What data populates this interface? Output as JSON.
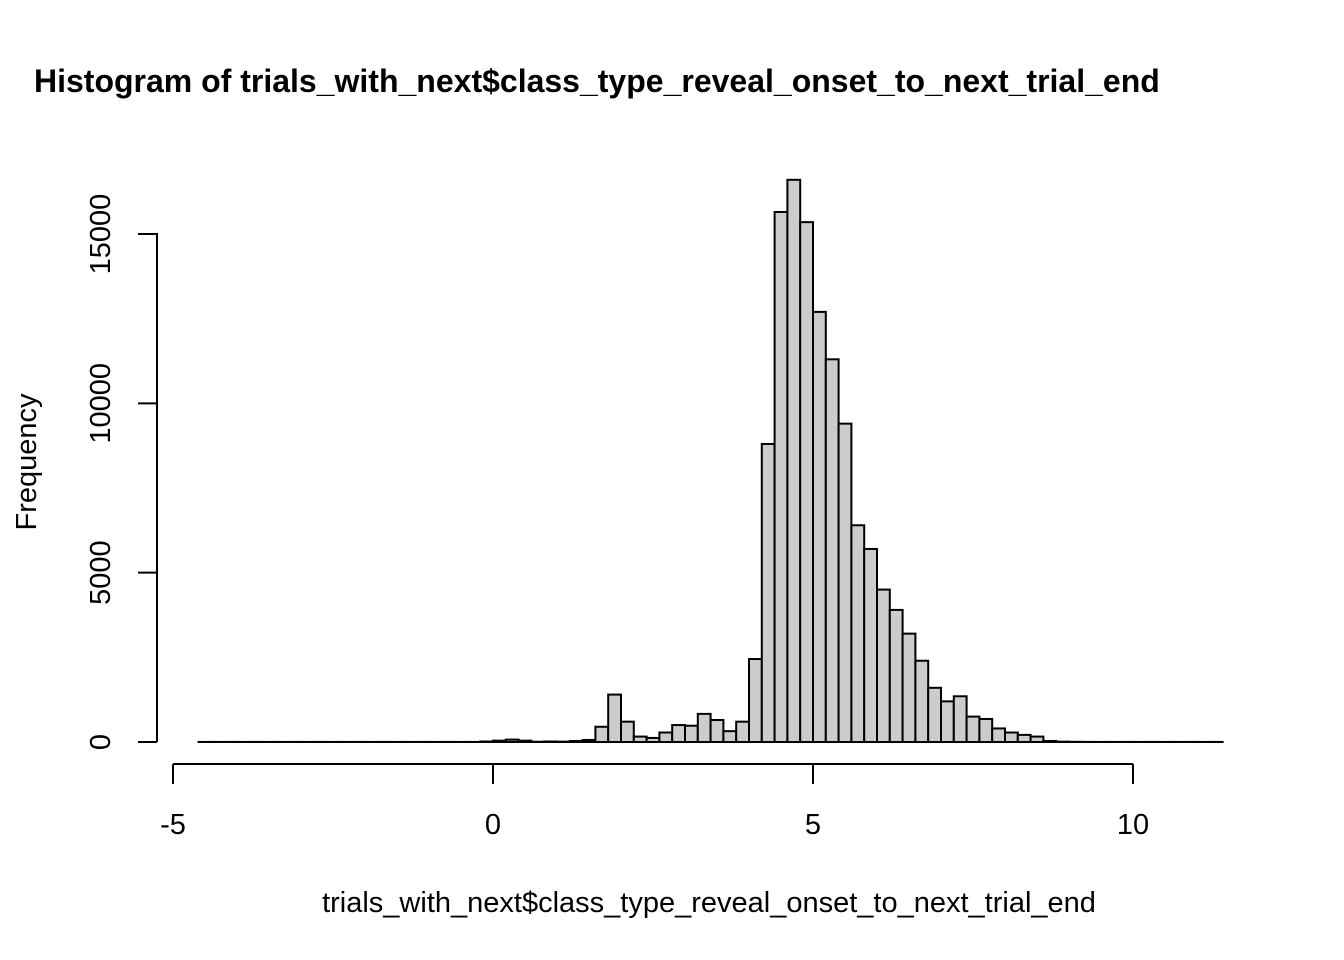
{
  "chart_data": {
    "type": "bar",
    "title": "Histogram of trials_with_next$class_type_reveal_onset_to_next_trial_end",
    "xlabel": "trials_with_next$class_type_reveal_onset_to_next_trial_end",
    "ylabel": "Frequency",
    "xlim": [
      -5,
      11.5
    ],
    "ylim": [
      0,
      16500
    ],
    "x_ticks": [
      -5,
      0,
      5,
      10
    ],
    "y_ticks": [
      0,
      5000,
      10000,
      15000
    ],
    "bin_start": -4.6,
    "bin_width": 0.2,
    "values": [
      2,
      2,
      2,
      2,
      2,
      2,
      2,
      2,
      2,
      2,
      2,
      2,
      2,
      2,
      2,
      2,
      2,
      2,
      2,
      2,
      2,
      2,
      15,
      40,
      70,
      40,
      8,
      15,
      10,
      30,
      60,
      450,
      1400,
      600,
      160,
      120,
      280,
      500,
      480,
      830,
      650,
      320,
      600,
      2450,
      8800,
      15650,
      16600,
      15350,
      12700,
      11300,
      9400,
      6400,
      5700,
      4500,
      3900,
      3200,
      2400,
      1600,
      1200,
      1350,
      750,
      680,
      400,
      280,
      210,
      160,
      30,
      10,
      5,
      3,
      2,
      2,
      2,
      2,
      2,
      2,
      2,
      2,
      2,
      2
    ]
  }
}
